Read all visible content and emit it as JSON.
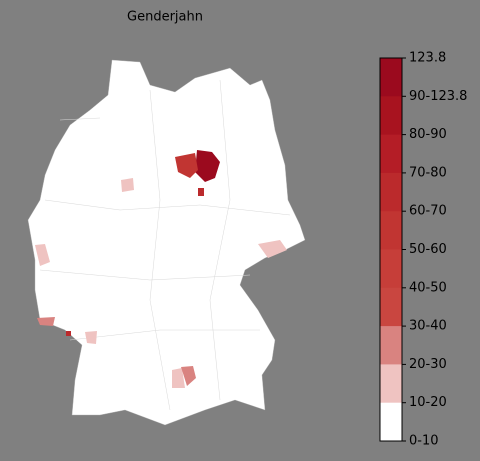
{
  "title": "Genderjahn",
  "legend": {
    "labels": [
      "123.8",
      "90-123.8",
      "80-90",
      "70-80",
      "60-70",
      "50-60",
      "40-50",
      "30-40",
      "20-30",
      "10-20",
      "0-10"
    ],
    "colors": [
      "#9b0a1e",
      "#a8131f",
      "#b41d26",
      "#bb2a2c",
      "#c13532",
      "#c63e39",
      "#c94640",
      "#d98380",
      "#efc3c1",
      "#ffffff"
    ]
  }
}
